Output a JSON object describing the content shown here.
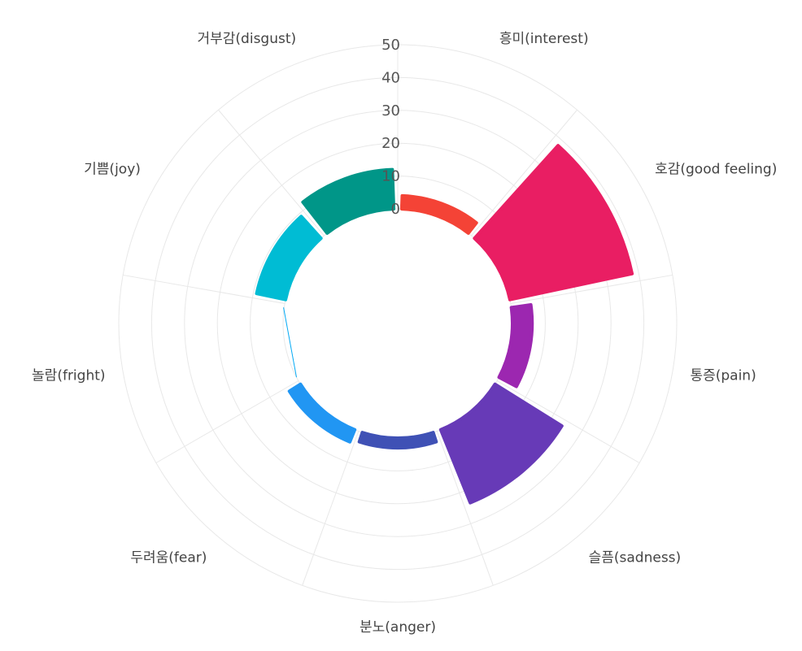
{
  "chart_data": {
    "type": "polar-bar",
    "title": "",
    "categories": [
      "흥미(interest)",
      "호감(good feeling)",
      "통증(pain)",
      "슬픔(sadness)",
      "분노(anger)",
      "두려움(fear)",
      "놀람(fright)",
      "기쁨(joy)",
      "거부감(disgust)"
    ],
    "values": [
      4,
      38,
      6,
      24,
      3,
      4,
      0,
      9,
      12
    ],
    "colors": [
      "#f44336",
      "#e91e63",
      "#9c27b0",
      "#673ab7",
      "#3f51b5",
      "#2196f3",
      "#03a9f4",
      "#00bcd4",
      "#009688"
    ],
    "radial_axis": {
      "min": 0,
      "max": 50,
      "ticks": [
        0,
        10,
        20,
        30,
        40,
        50
      ]
    },
    "grid": true,
    "legend": "none"
  }
}
